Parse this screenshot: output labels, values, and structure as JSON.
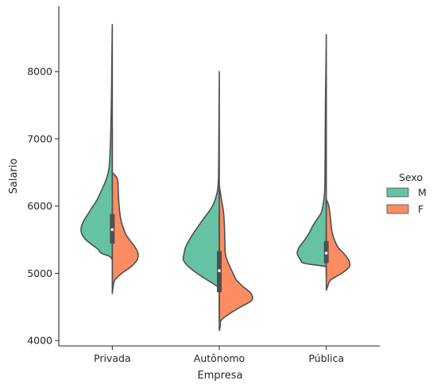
{
  "chart_data": {
    "type": "violin",
    "split": true,
    "xlabel": "Empresa",
    "ylabel": "Salario",
    "ylim": [
      3920,
      8970
    ],
    "yticks": [
      4000,
      5000,
      6000,
      7000,
      8000
    ],
    "categories": [
      "Privada",
      "Autônomo",
      "Pública"
    ],
    "legend": {
      "title": "Sexo",
      "position": "right"
    },
    "grid": false,
    "series": [
      {
        "name": "M",
        "color": "#66c2a5"
      },
      {
        "name": "F",
        "color": "#fc8d62"
      }
    ],
    "violins": [
      {
        "category": "Privada",
        "box": {
          "q1": 5440,
          "median": 5650,
          "q3": 5880,
          "whisker_low": 4850,
          "whisker_high": 7150
        },
        "M": [
          [
            8700,
            0
          ],
          [
            8200,
            0.01
          ],
          [
            7600,
            0.02
          ],
          [
            7000,
            0.04
          ],
          [
            6700,
            0.06
          ],
          [
            6550,
            0.08
          ],
          [
            6400,
            0.14
          ],
          [
            6250,
            0.24
          ],
          [
            6100,
            0.35
          ],
          [
            6000,
            0.45
          ],
          [
            5900,
            0.55
          ],
          [
            5800,
            0.65
          ],
          [
            5700,
            0.72
          ],
          [
            5600,
            0.72
          ],
          [
            5500,
            0.62
          ],
          [
            5400,
            0.42
          ],
          [
            5350,
            0.32
          ],
          [
            5300,
            0.26
          ],
          [
            5250,
            0.06
          ],
          [
            5200,
            0
          ]
        ],
        "F": [
          [
            6500,
            0
          ],
          [
            6400,
            0.12
          ],
          [
            6200,
            0.14
          ],
          [
            6000,
            0.16
          ],
          [
            5800,
            0.2
          ],
          [
            5600,
            0.3
          ],
          [
            5500,
            0.4
          ],
          [
            5400,
            0.52
          ],
          [
            5300,
            0.6
          ],
          [
            5200,
            0.58
          ],
          [
            5100,
            0.44
          ],
          [
            5000,
            0.22
          ],
          [
            4900,
            0.06
          ],
          [
            4800,
            0.02
          ],
          [
            4700,
            0
          ]
        ]
      },
      {
        "category": "Autônomo",
        "box": {
          "q1": 4720,
          "median": 5040,
          "q3": 5330,
          "whisker_low": 4300,
          "whisker_high": 5900
        },
        "M": [
          [
            8000,
            0
          ],
          [
            7500,
            0.005
          ],
          [
            7000,
            0.01
          ],
          [
            6600,
            0.015
          ],
          [
            6400,
            0.02
          ],
          [
            6200,
            0.05
          ],
          [
            6000,
            0.16
          ],
          [
            5800,
            0.38
          ],
          [
            5600,
            0.6
          ],
          [
            5400,
            0.78
          ],
          [
            5300,
            0.82
          ],
          [
            5200,
            0.84
          ],
          [
            5100,
            0.72
          ],
          [
            5000,
            0.52
          ],
          [
            4900,
            0.28
          ],
          [
            4800,
            0.04
          ],
          [
            4700,
            0
          ]
        ],
        "F": [
          [
            6300,
            0
          ],
          [
            6100,
            0.05
          ],
          [
            5900,
            0.1
          ],
          [
            5700,
            0.12
          ],
          [
            5500,
            0.13
          ],
          [
            5300,
            0.14
          ],
          [
            5200,
            0.18
          ],
          [
            5000,
            0.32
          ],
          [
            4900,
            0.4
          ],
          [
            4800,
            0.56
          ],
          [
            4700,
            0.74
          ],
          [
            4600,
            0.76
          ],
          [
            4500,
            0.5
          ],
          [
            4400,
            0.24
          ],
          [
            4300,
            0.04
          ],
          [
            4200,
            0.02
          ],
          [
            4150,
            0
          ]
        ]
      },
      {
        "category": "Pública",
        "box": {
          "q1": 5150,
          "median": 5300,
          "q3": 5480,
          "whisker_low": 4950,
          "whisker_high": 5700
        },
        "M": [
          [
            8550,
            0
          ],
          [
            8000,
            0.01
          ],
          [
            7500,
            0.02
          ],
          [
            7000,
            0.025
          ],
          [
            6500,
            0.03
          ],
          [
            6200,
            0.04
          ],
          [
            6000,
            0.08
          ],
          [
            5900,
            0.12
          ],
          [
            5800,
            0.22
          ],
          [
            5700,
            0.32
          ],
          [
            5600,
            0.4
          ],
          [
            5500,
            0.5
          ],
          [
            5400,
            0.62
          ],
          [
            5300,
            0.68
          ],
          [
            5200,
            0.6
          ],
          [
            5150,
            0.52
          ],
          [
            5100,
            0.02
          ],
          [
            5050,
            0
          ]
        ],
        "F": [
          [
            6100,
            0
          ],
          [
            6000,
            0.06
          ],
          [
            5800,
            0.1
          ],
          [
            5600,
            0.14
          ],
          [
            5400,
            0.26
          ],
          [
            5300,
            0.4
          ],
          [
            5200,
            0.52
          ],
          [
            5100,
            0.54
          ],
          [
            5000,
            0.36
          ],
          [
            4900,
            0.1
          ],
          [
            4800,
            0.03
          ],
          [
            4750,
            0
          ]
        ]
      }
    ]
  }
}
